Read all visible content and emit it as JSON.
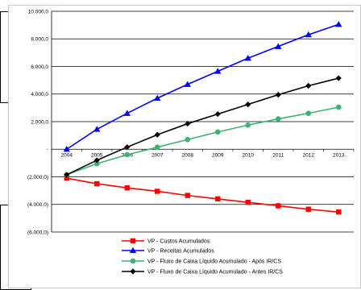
{
  "chart_data": {
    "type": "line",
    "x": [
      "2004",
      "2005",
      "2006",
      "2007",
      "2008",
      "2009",
      "2010",
      "2011",
      "2012",
      "2013"
    ],
    "y_tick_labels": [
      "10.000,0",
      "8.000,0",
      "6.000,0",
      "4.000,0",
      "2.000,0",
      "-",
      "(2.000,0)",
      "(4.000,0)",
      "(6.000,0)"
    ],
    "y_ticks": [
      10000,
      8000,
      6000,
      4000,
      2000,
      0,
      -2000,
      -4000,
      -6000
    ],
    "ylim": [
      -6000,
      10000
    ],
    "grid": "horizontal",
    "legend_position": "bottom",
    "series": [
      {
        "name": "VP - Custos Acumulados",
        "color": "#ff0000",
        "marker": "square",
        "values": [
          -2100,
          -2500,
          -2800,
          -3050,
          -3350,
          -3600,
          -3850,
          -4100,
          -4350,
          -4550
        ]
      },
      {
        "name": "VP - Receitas Acumulados",
        "color": "#0000ff",
        "marker": "triangle",
        "values": [
          0,
          1450,
          2600,
          3700,
          4700,
          5650,
          6600,
          7450,
          8300,
          9050
        ]
      },
      {
        "name": "VP - Fluxo de Caixa Líquido Acumulado - Após IR/CS",
        "color": "#3cb371",
        "marker": "circle",
        "values": [
          -1850,
          -1050,
          -400,
          150,
          700,
          1250,
          1750,
          2200,
          2600,
          3050
        ]
      },
      {
        "name": "VP - Fluxo de Caixa Líquido Acumulado - Antes IR/CS",
        "color": "#000000",
        "marker": "diamond",
        "values": [
          -1850,
          -800,
          150,
          1050,
          1850,
          2550,
          3250,
          3950,
          4600,
          5150
        ]
      }
    ]
  }
}
